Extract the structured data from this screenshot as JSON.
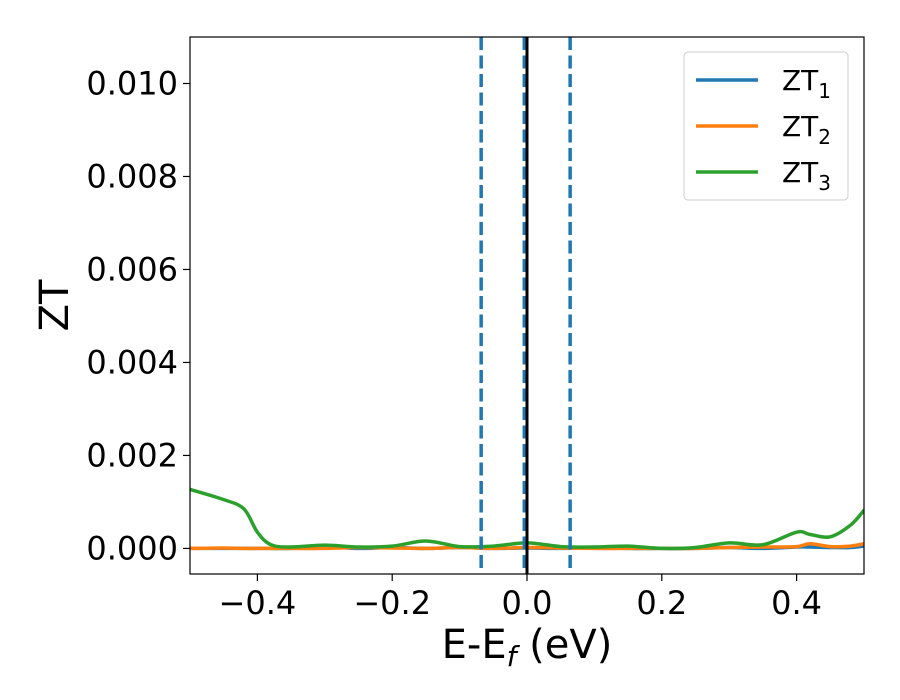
{
  "chart_data": {
    "type": "line",
    "xlabel": {
      "main": "E-E",
      "sub": "f",
      "suffix": " (eV)"
    },
    "ylabel": "ZT",
    "xlim": [
      -0.5,
      0.5
    ],
    "ylim": [
      -0.00055,
      0.011
    ],
    "x_ticks": [
      -0.4,
      -0.2,
      0.0,
      0.2,
      0.4
    ],
    "x_tick_labels": [
      "−0.4",
      "−0.2",
      "0.0",
      "0.2",
      "0.4"
    ],
    "y_ticks": [
      0.0,
      0.002,
      0.004,
      0.006,
      0.008,
      0.01
    ],
    "y_tick_labels": [
      "0.000",
      "0.002",
      "0.004",
      "0.006",
      "0.008",
      "0.010"
    ],
    "legend_position": "top-right",
    "grid": false,
    "vertical_lines": [
      {
        "x": -0.068,
        "color": "#1f77b4",
        "style": "dashed"
      },
      {
        "x": -0.004,
        "color": "#1f77b4",
        "style": "dashed"
      },
      {
        "x": 0.0,
        "color": "#000000",
        "style": "solid"
      },
      {
        "x": 0.064,
        "color": "#1f77b4",
        "style": "dashed"
      }
    ],
    "x": [
      -0.5,
      -0.45,
      -0.42,
      -0.4,
      -0.38,
      -0.35,
      -0.3,
      -0.25,
      -0.2,
      -0.15,
      -0.1,
      -0.05,
      0.0,
      0.05,
      0.1,
      0.15,
      0.2,
      0.25,
      0.3,
      0.35,
      0.4,
      0.42,
      0.45,
      0.48,
      0.5
    ],
    "series": [
      {
        "name": "ZT",
        "sub": "1",
        "color": "#1f77b4",
        "values": [
          0.0,
          0.0,
          0.0,
          0.0,
          0.0,
          0.0,
          3e-05,
          0.0,
          2e-05,
          0.0,
          2e-05,
          0.0,
          1e-05,
          0.0,
          2e-05,
          0.0,
          0.0,
          0.0,
          2e-05,
          0.0,
          3e-05,
          3e-05,
          2e-05,
          2e-05,
          5e-05
        ]
      },
      {
        "name": "ZT",
        "sub": "2",
        "color": "#ff7f0e",
        "values": [
          0.0,
          1e-05,
          0.0,
          0.0,
          0.0,
          0.0,
          0.0,
          2e-05,
          1e-05,
          0.0,
          2e-05,
          0.0,
          2e-05,
          1e-05,
          0.0,
          0.0,
          0.0,
          0.0,
          2e-05,
          3e-05,
          4e-05,
          0.0001,
          4e-05,
          5e-05,
          0.0001
        ]
      },
      {
        "name": "ZT",
        "sub": "3",
        "color": "#2ca02c",
        "values": [
          0.00127,
          0.00105,
          0.00085,
          0.00035,
          8e-05,
          3e-05,
          7e-05,
          3e-05,
          5e-05,
          0.00016,
          4e-05,
          5e-05,
          0.00012,
          4e-05,
          3e-05,
          5e-05,
          0.0,
          2e-05,
          0.00012,
          8e-05,
          0.00035,
          0.0003,
          0.00025,
          0.0005,
          0.00082
        ]
      }
    ]
  }
}
